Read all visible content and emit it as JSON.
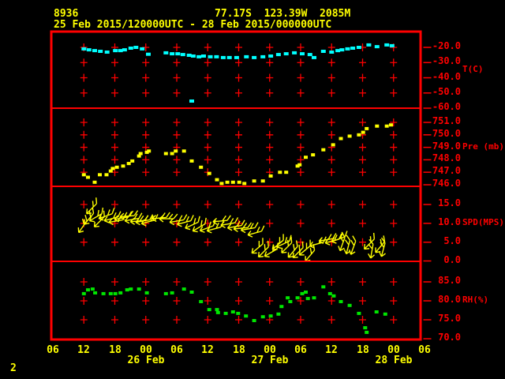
{
  "header": {
    "station_id": "8936",
    "location": "77.17S  123.39W  2085M",
    "period": "25 Feb 2015/120000UTC - 28 Feb 2015/000000UTC"
  },
  "footer": {
    "page_number": "2"
  },
  "colors": {
    "background": "#000000",
    "grid_red": "#ff0000",
    "text_yellow": "#ffff00",
    "temperature": "#00ffff",
    "pressure": "#ffff00",
    "wind": "#ffff00",
    "humidity": "#00e600"
  },
  "x_axis": {
    "xlim": [
      6,
      78
    ],
    "hours": [
      {
        "t": 6,
        "label": "06"
      },
      {
        "t": 12,
        "label": "12"
      },
      {
        "t": 18,
        "label": "18"
      },
      {
        "t": 24,
        "label": "00"
      },
      {
        "t": 30,
        "label": "06"
      },
      {
        "t": 36,
        "label": "12"
      },
      {
        "t": 42,
        "label": "18"
      },
      {
        "t": 48,
        "label": "00"
      },
      {
        "t": 54,
        "label": "06"
      },
      {
        "t": 60,
        "label": "12"
      },
      {
        "t": 66,
        "label": "18"
      },
      {
        "t": 72,
        "label": "00"
      },
      {
        "t": 78,
        "label": "06"
      }
    ],
    "dates": [
      {
        "t": 24,
        "label": "26 Feb"
      },
      {
        "t": 48,
        "label": "27 Feb"
      },
      {
        "t": 72,
        "label": "28 Feb"
      }
    ]
  },
  "chart_data": [
    {
      "type": "scatter",
      "name": "temperature",
      "unit_label": "T(C)",
      "unit_label_at": -34.8,
      "marker_color": "#00ffff",
      "marker_size": [
        6,
        4
      ],
      "ylim": [
        -60,
        -9.6
      ],
      "right_ticks": [
        {
          "v": -20,
          "label": "-20.0"
        },
        {
          "v": -30,
          "label": "-30.0"
        },
        {
          "v": -40,
          "label": "-40.0"
        },
        {
          "v": -50,
          "label": "-50.0"
        },
        {
          "v": -60,
          "label": "-60.0"
        }
      ],
      "grid_rows": [
        -20,
        -30,
        -40,
        -50
      ],
      "points": [
        [
          12,
          -21
        ],
        [
          13,
          -21.6
        ],
        [
          14.1,
          -22.1
        ],
        [
          15.2,
          -22.6
        ],
        [
          16.5,
          -23.1
        ],
        [
          18.1,
          -22.1
        ],
        [
          19.1,
          -22.1
        ],
        [
          19.9,
          -21.6
        ],
        [
          21.1,
          -20.5
        ],
        [
          22.1,
          -20
        ],
        [
          23.3,
          -21
        ],
        [
          24.5,
          -24.5
        ],
        [
          27.9,
          -23.6
        ],
        [
          29.1,
          -24.2
        ],
        [
          30.2,
          -24.2
        ],
        [
          31.2,
          -24.7
        ],
        [
          32.4,
          -25.2
        ],
        [
          33.2,
          -25.7
        ],
        [
          34.3,
          -26.2
        ],
        [
          35.2,
          -25.7
        ],
        [
          36.5,
          -26.2
        ],
        [
          37.7,
          -26.2
        ],
        [
          39,
          -26.7
        ],
        [
          40.2,
          -26.7
        ],
        [
          41.6,
          -26.7
        ],
        [
          43.5,
          -26.2
        ],
        [
          45,
          -26.7
        ],
        [
          46.7,
          -26.2
        ],
        [
          48.2,
          -25.7
        ],
        [
          49.7,
          -24.7
        ],
        [
          51.2,
          -24.2
        ],
        [
          52.8,
          -23.6
        ],
        [
          54.3,
          -24.2
        ],
        [
          55.8,
          -24.7
        ],
        [
          56.6,
          -26.7
        ],
        [
          58.4,
          -22.6
        ],
        [
          60,
          -23.1
        ],
        [
          61.2,
          -22.1
        ],
        [
          62,
          -21.6
        ],
        [
          63.1,
          -21
        ],
        [
          64.1,
          -20.5
        ],
        [
          65.3,
          -20
        ],
        [
          67.2,
          -18.4
        ],
        [
          68.8,
          -19.5
        ],
        [
          70.7,
          -18.4
        ],
        [
          71.7,
          -18.9
        ],
        [
          32.9,
          -55.3
        ]
      ]
    },
    {
      "type": "scatter",
      "name": "pressure",
      "unit_label": "Pre (mb)",
      "unit_label_at": 749,
      "marker_color": "#ffff00",
      "marker_size": [
        5,
        4
      ],
      "ylim": [
        745.87,
        752.14
      ],
      "right_ticks": [
        {
          "v": 751,
          "label": "751.0"
        },
        {
          "v": 750,
          "label": "750.0"
        },
        {
          "v": 749,
          "label": "749.0"
        },
        {
          "v": 748,
          "label": "748.0"
        },
        {
          "v": 747,
          "label": "747.0"
        },
        {
          "v": 746,
          "label": "746.0"
        }
      ],
      "grid_rows": [
        751,
        750,
        749,
        748,
        747
      ],
      "points": [
        [
          12,
          746.8
        ],
        [
          12.8,
          746.6
        ],
        [
          14.1,
          746.2
        ],
        [
          15.1,
          746.8
        ],
        [
          16.4,
          746.8
        ],
        [
          17.2,
          747.1
        ],
        [
          17.6,
          747.3
        ],
        [
          18.4,
          747.4
        ],
        [
          19.6,
          747.5
        ],
        [
          20.7,
          747.7
        ],
        [
          21.4,
          747.9
        ],
        [
          22.7,
          748.3
        ],
        [
          23,
          748.5
        ],
        [
          24.2,
          748.6
        ],
        [
          24.6,
          748.7
        ],
        [
          27.9,
          748.5
        ],
        [
          29.1,
          748.5
        ],
        [
          29.8,
          748.7
        ],
        [
          31.4,
          748.7
        ],
        [
          32.9,
          747.9
        ],
        [
          34.7,
          747.4
        ],
        [
          36.3,
          746.9
        ],
        [
          37.8,
          746.4
        ],
        [
          38.7,
          746.1
        ],
        [
          39.8,
          746.2
        ],
        [
          40.9,
          746.2
        ],
        [
          42.1,
          746.2
        ],
        [
          43.1,
          746.1
        ],
        [
          45,
          746.3
        ],
        [
          46.7,
          746.3
        ],
        [
          48.2,
          746.7
        ],
        [
          50,
          747
        ],
        [
          51.2,
          747
        ],
        [
          53.4,
          747.5
        ],
        [
          53.8,
          747.6
        ],
        [
          55,
          748.2
        ],
        [
          56.4,
          748.4
        ],
        [
          58.4,
          748.8
        ],
        [
          60.3,
          749.2
        ],
        [
          61.8,
          749.7
        ],
        [
          63.5,
          749.9
        ],
        [
          65.3,
          750
        ],
        [
          66.1,
          750.2
        ],
        [
          66.8,
          750.5
        ],
        [
          68.8,
          750.7
        ],
        [
          70.7,
          750.7
        ],
        [
          71.5,
          750.8
        ]
      ]
    },
    {
      "type": "wind-barbs",
      "name": "wind_speed",
      "unit_label": "SPD(MPS)",
      "unit_label_at": 10,
      "marker_color": "#ffff00",
      "ylim": [
        -0.1,
        19.83
      ],
      "right_ticks": [
        {
          "v": 15,
          "label": "15.0"
        },
        {
          "v": 10,
          "label": "10.0"
        },
        {
          "v": 5,
          "label": "5.0"
        },
        {
          "v": 0,
          "label": "0.0"
        }
      ],
      "grid_rows": [
        15,
        10,
        5
      ],
      "barbs": [
        [
          11.8,
          9.1,
          55
        ],
        [
          13,
          11.2,
          50
        ],
        [
          13.5,
          13.9,
          45
        ],
        [
          14.3,
          11.6,
          30
        ],
        [
          15,
          10.4,
          45
        ],
        [
          16.2,
          11.9,
          20
        ],
        [
          17.3,
          11.2,
          15
        ],
        [
          18.2,
          10.6,
          10
        ],
        [
          19.3,
          11.4,
          10
        ],
        [
          20.4,
          11.9,
          5
        ],
        [
          21.3,
          11,
          10
        ],
        [
          22.4,
          10.6,
          5
        ],
        [
          23.4,
          10.6,
          10
        ],
        [
          24.5,
          10.4,
          15
        ],
        [
          26.6,
          11.4,
          5
        ],
        [
          28,
          11.2,
          0
        ],
        [
          30,
          10.6,
          10
        ],
        [
          31.4,
          10.2,
          15
        ],
        [
          32.9,
          9.5,
          25
        ],
        [
          34.3,
          8.9,
          30
        ],
        [
          35.8,
          8.7,
          20
        ],
        [
          37.2,
          8.5,
          15
        ],
        [
          38.4,
          10.6,
          5
        ],
        [
          39.9,
          9.8,
          10
        ],
        [
          41.2,
          9.1,
          10
        ],
        [
          42.4,
          8.7,
          5
        ],
        [
          43.8,
          8.5,
          10
        ],
        [
          45.1,
          7.4,
          15
        ],
        [
          45.6,
          3.3,
          40
        ],
        [
          46.8,
          2.4,
          45
        ],
        [
          48.2,
          2.2,
          30
        ],
        [
          49.6,
          4.3,
          40
        ],
        [
          50.6,
          4.5,
          25
        ],
        [
          51.3,
          3.5,
          45
        ],
        [
          52.5,
          2.4,
          50
        ],
        [
          53.5,
          2.2,
          45
        ],
        [
          54.8,
          2.8,
          40
        ],
        [
          55.8,
          1.4,
          50
        ],
        [
          57.1,
          4.5,
          15
        ],
        [
          58.9,
          5.6,
          10
        ],
        [
          60.1,
          5.3,
          15
        ],
        [
          61.3,
          5.8,
          20
        ],
        [
          62.1,
          4.5,
          70
        ],
        [
          63.2,
          3.7,
          75
        ],
        [
          64.2,
          3.5,
          70
        ],
        [
          67.3,
          4.5,
          45
        ],
        [
          67.8,
          2.6,
          80
        ],
        [
          69.4,
          3.7,
          50
        ],
        [
          70,
          3,
          75
        ]
      ]
    },
    {
      "type": "scatter",
      "name": "relative_humidity",
      "unit_label": "RH(%)",
      "unit_label_at": 80,
      "marker_color": "#00e600",
      "marker_size": [
        5,
        4
      ],
      "ylim": [
        69.8,
        90.42
      ],
      "right_ticks": [
        {
          "v": 85,
          "label": "85.0"
        },
        {
          "v": 80,
          "label": "80.0"
        },
        {
          "v": 75,
          "label": "75.0"
        },
        {
          "v": 70,
          "label": "70.0"
        }
      ],
      "grid_rows": [
        85,
        80,
        75
      ],
      "points": [
        [
          12,
          81.9
        ],
        [
          12.8,
          82.9
        ],
        [
          13.7,
          83.1
        ],
        [
          14.2,
          82.1
        ],
        [
          15.8,
          81.9
        ],
        [
          17.2,
          81.9
        ],
        [
          18.1,
          81.9
        ],
        [
          19.1,
          82.1
        ],
        [
          20.4,
          82.9
        ],
        [
          21.1,
          83.1
        ],
        [
          22.7,
          83.1
        ],
        [
          24.2,
          82.1
        ],
        [
          27.9,
          81.9
        ],
        [
          29.1,
          82.1
        ],
        [
          31.4,
          83.1
        ],
        [
          32.9,
          82.3
        ],
        [
          34.7,
          79.8
        ],
        [
          36.3,
          77.7
        ],
        [
          37.8,
          77.7
        ],
        [
          38,
          76.9
        ],
        [
          39.5,
          76.7
        ],
        [
          40.9,
          77.1
        ],
        [
          41.9,
          76.7
        ],
        [
          43.4,
          76
        ],
        [
          45,
          74.8
        ],
        [
          46.7,
          75.8
        ],
        [
          48.2,
          76
        ],
        [
          49.7,
          76.5
        ],
        [
          50.3,
          78.5
        ],
        [
          51.5,
          80.8
        ],
        [
          52,
          79.8
        ],
        [
          53.4,
          80.8
        ],
        [
          54.3,
          81.9
        ],
        [
          55,
          82.3
        ],
        [
          55.4,
          80.6
        ],
        [
          56.6,
          80.8
        ],
        [
          58.4,
          83.7
        ],
        [
          59.7,
          81.9
        ],
        [
          60.4,
          81.3
        ],
        [
          61.8,
          79.8
        ],
        [
          63.5,
          78.8
        ],
        [
          65.3,
          76.7
        ],
        [
          66.5,
          72.9
        ],
        [
          66.8,
          71.7
        ],
        [
          68.7,
          77.1
        ],
        [
          70.4,
          76.5
        ]
      ]
    }
  ]
}
